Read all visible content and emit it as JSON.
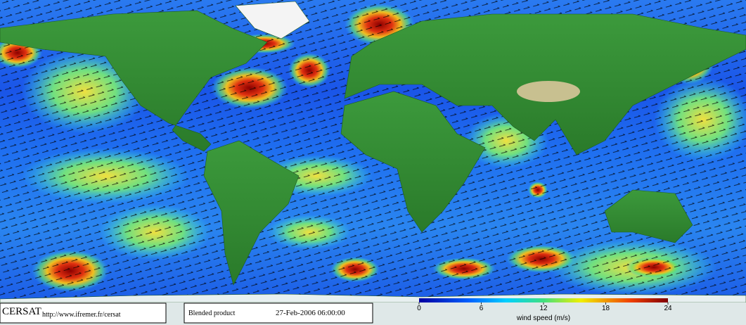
{
  "footer": {
    "logo": "CERSAT",
    "url": "http://www.ifremer.fr/cersat",
    "product": "Blended product",
    "timestamp": "27-Feb-2006 06:00:00"
  },
  "colorbar": {
    "lim": [
      0,
      24
    ],
    "ticks": [
      0,
      6,
      12,
      18,
      24
    ],
    "label": "wind speed (m/s)"
  }
}
